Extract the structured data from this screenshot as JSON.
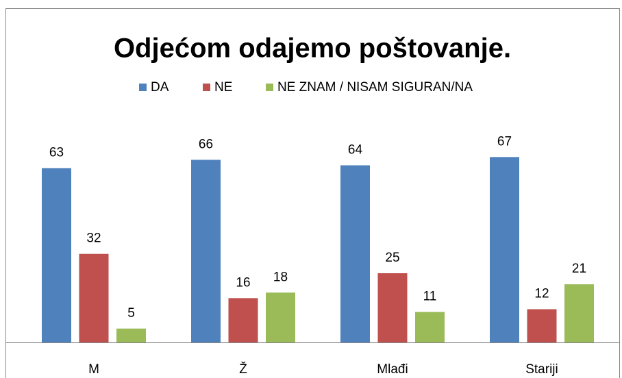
{
  "chart_data": {
    "type": "bar",
    "title": "Odjećom odajemo poštovanje.",
    "categories": [
      "M",
      "Ž",
      "Mlađi",
      "Stariji"
    ],
    "series": [
      {
        "name": "DA",
        "color": "#4f81bd",
        "values": [
          63,
          66,
          64,
          67
        ]
      },
      {
        "name": "NE",
        "color": "#c0504d",
        "values": [
          32,
          16,
          25,
          12
        ]
      },
      {
        "name": "NE ZNAM / NISAM SIGURAN/NA",
        "color": "#9bbb59",
        "values": [
          5,
          18,
          11,
          21
        ]
      }
    ],
    "legend": "top"
  }
}
